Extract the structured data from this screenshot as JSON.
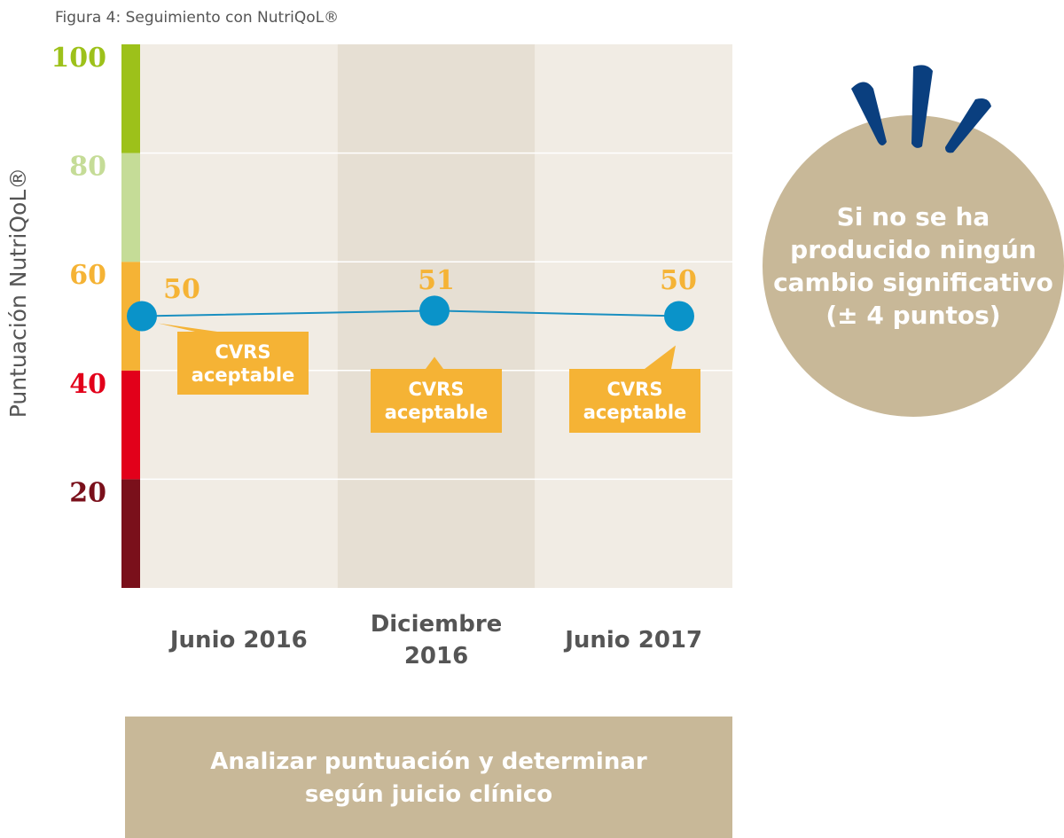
{
  "title": "Figura 4: Seguimiento con NutriQoL®",
  "chart_data": {
    "type": "line",
    "y_label": "Puntuación NutriQoL®",
    "categories": [
      "Junio 2016",
      "Diciembre 2016",
      "Junio 2017"
    ],
    "values": [
      50,
      51,
      50
    ],
    "color": "#1a8fc0",
    "annotations": [
      "CVRS aceptable",
      "CVRS aceptable",
      "CVRS aceptable"
    ],
    "ylim": [
      0,
      100
    ],
    "yticks": [
      20,
      40,
      60,
      80,
      100
    ],
    "band_colors": [
      "#7a101b",
      "#e2001a",
      "#f5b335",
      "#c5dc97",
      "#9dc11a"
    ],
    "column_colors": [
      "#f1ece4",
      "#e6dfd3",
      "#f1ece4"
    ],
    "grid": true
  },
  "bubble": {
    "text": "Si no se ha producido ningún cambio significativo (± 4 puntos)"
  },
  "footer_box": {
    "text": "Analizar puntuación y determinar según juicio clínico"
  }
}
